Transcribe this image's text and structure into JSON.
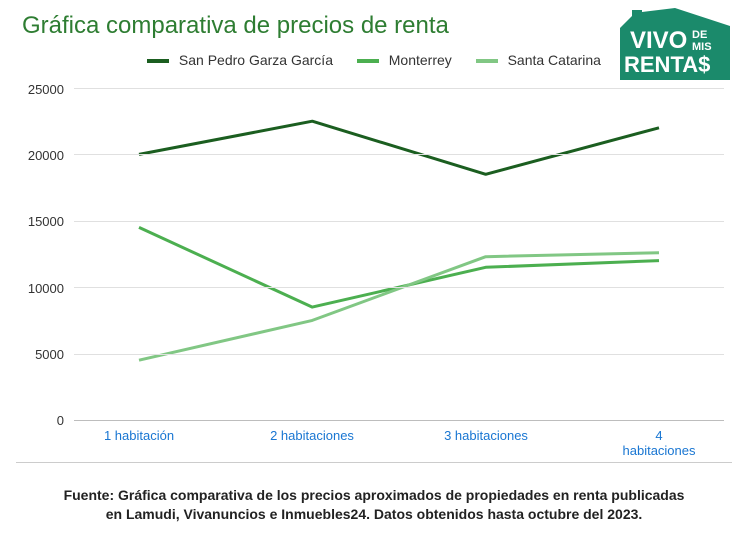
{
  "title": "Gráfica comparativa de precios de renta",
  "title_color": "#2e7d32",
  "title_fontsize": 24,
  "logo": {
    "bg_color": "#1b8a6b",
    "text_color": "#ffffff",
    "line1": "VIVO",
    "line1_sup": "DE",
    "line2_sup": "MIS",
    "line2": "RENTA$"
  },
  "chart": {
    "type": "line",
    "categories": [
      "1 habitación",
      "2 habitaciones",
      "3 habitaciones",
      "4 habitaciones"
    ],
    "category_color": "#1976d2",
    "series": [
      {
        "name": "San Pedro Garza García",
        "color": "#1b5e20",
        "width": 3,
        "values": [
          20000,
          22500,
          18500,
          22000
        ]
      },
      {
        "name": "Monterrey",
        "color": "#4caf50",
        "width": 3,
        "values": [
          14500,
          8500,
          11500,
          12000
        ]
      },
      {
        "name": "Santa Catarina",
        "color": "#81c784",
        "width": 3,
        "values": [
          4500,
          7500,
          12300,
          12600
        ]
      }
    ],
    "ylim": [
      0,
      25000
    ],
    "ytick_step": 5000,
    "yticks": [
      0,
      5000,
      10000,
      15000,
      20000,
      25000
    ],
    "grid_color": "#e0e0e0",
    "axis_color": "#bdbdbd",
    "background_color": "#ffffff",
    "tick_label_color": "#333333",
    "tick_fontsize": 13,
    "legend_fontsize": 14,
    "legend_position": "top-center",
    "line_divider_color": "#cccccc"
  },
  "source": "Fuente: Gráfica comparativa de los precios aproximados de propiedades en renta publicadas en Lamudi, Vivanuncios e Inmuebles24. Datos obtenidos hasta octubre del 2023.",
  "source_fontsize": 14,
  "source_color": "#222222"
}
